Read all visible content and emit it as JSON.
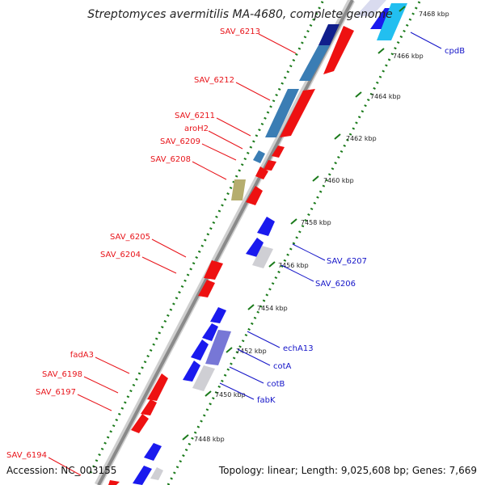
{
  "title": "Streptomyces avermitilis MA-4680, complete genome",
  "accession": "Accession: NC_003155",
  "summary": "Topology: linear; Length: 9,025,608 bp; Genes: 7,669",
  "colors": {
    "forward_label": "#e8141a",
    "reverse_label": "#1414c8",
    "forward_gene": "#ee1111",
    "reverse_gene": "#1a1aee",
    "backbone": "#888888",
    "ticks": "#1a7a1a"
  },
  "scale": {
    "unit": "kbp",
    "ticks": [
      "7448 kbp",
      "7450 kbp",
      "7452 kbp",
      "7454 kbp",
      "7456 kbp",
      "7458 kbp",
      "7460 kbp",
      "7462 kbp",
      "7464 kbp",
      "7466 kbp",
      "7468 kbp"
    ]
  },
  "forward_labels": [
    "SAV_6213",
    "SAV_6212",
    "SAV_6211",
    "aroH2",
    "SAV_6209",
    "SAV_6208",
    "SAV_6205",
    "SAV_6204",
    "fadA3",
    "SAV_6198",
    "SAV_6197",
    "SAV_6194"
  ],
  "reverse_labels": [
    "cpdB",
    "SAV_6207",
    "SAV_6206",
    "echA13",
    "cotA",
    "cotB",
    "fabK"
  ]
}
